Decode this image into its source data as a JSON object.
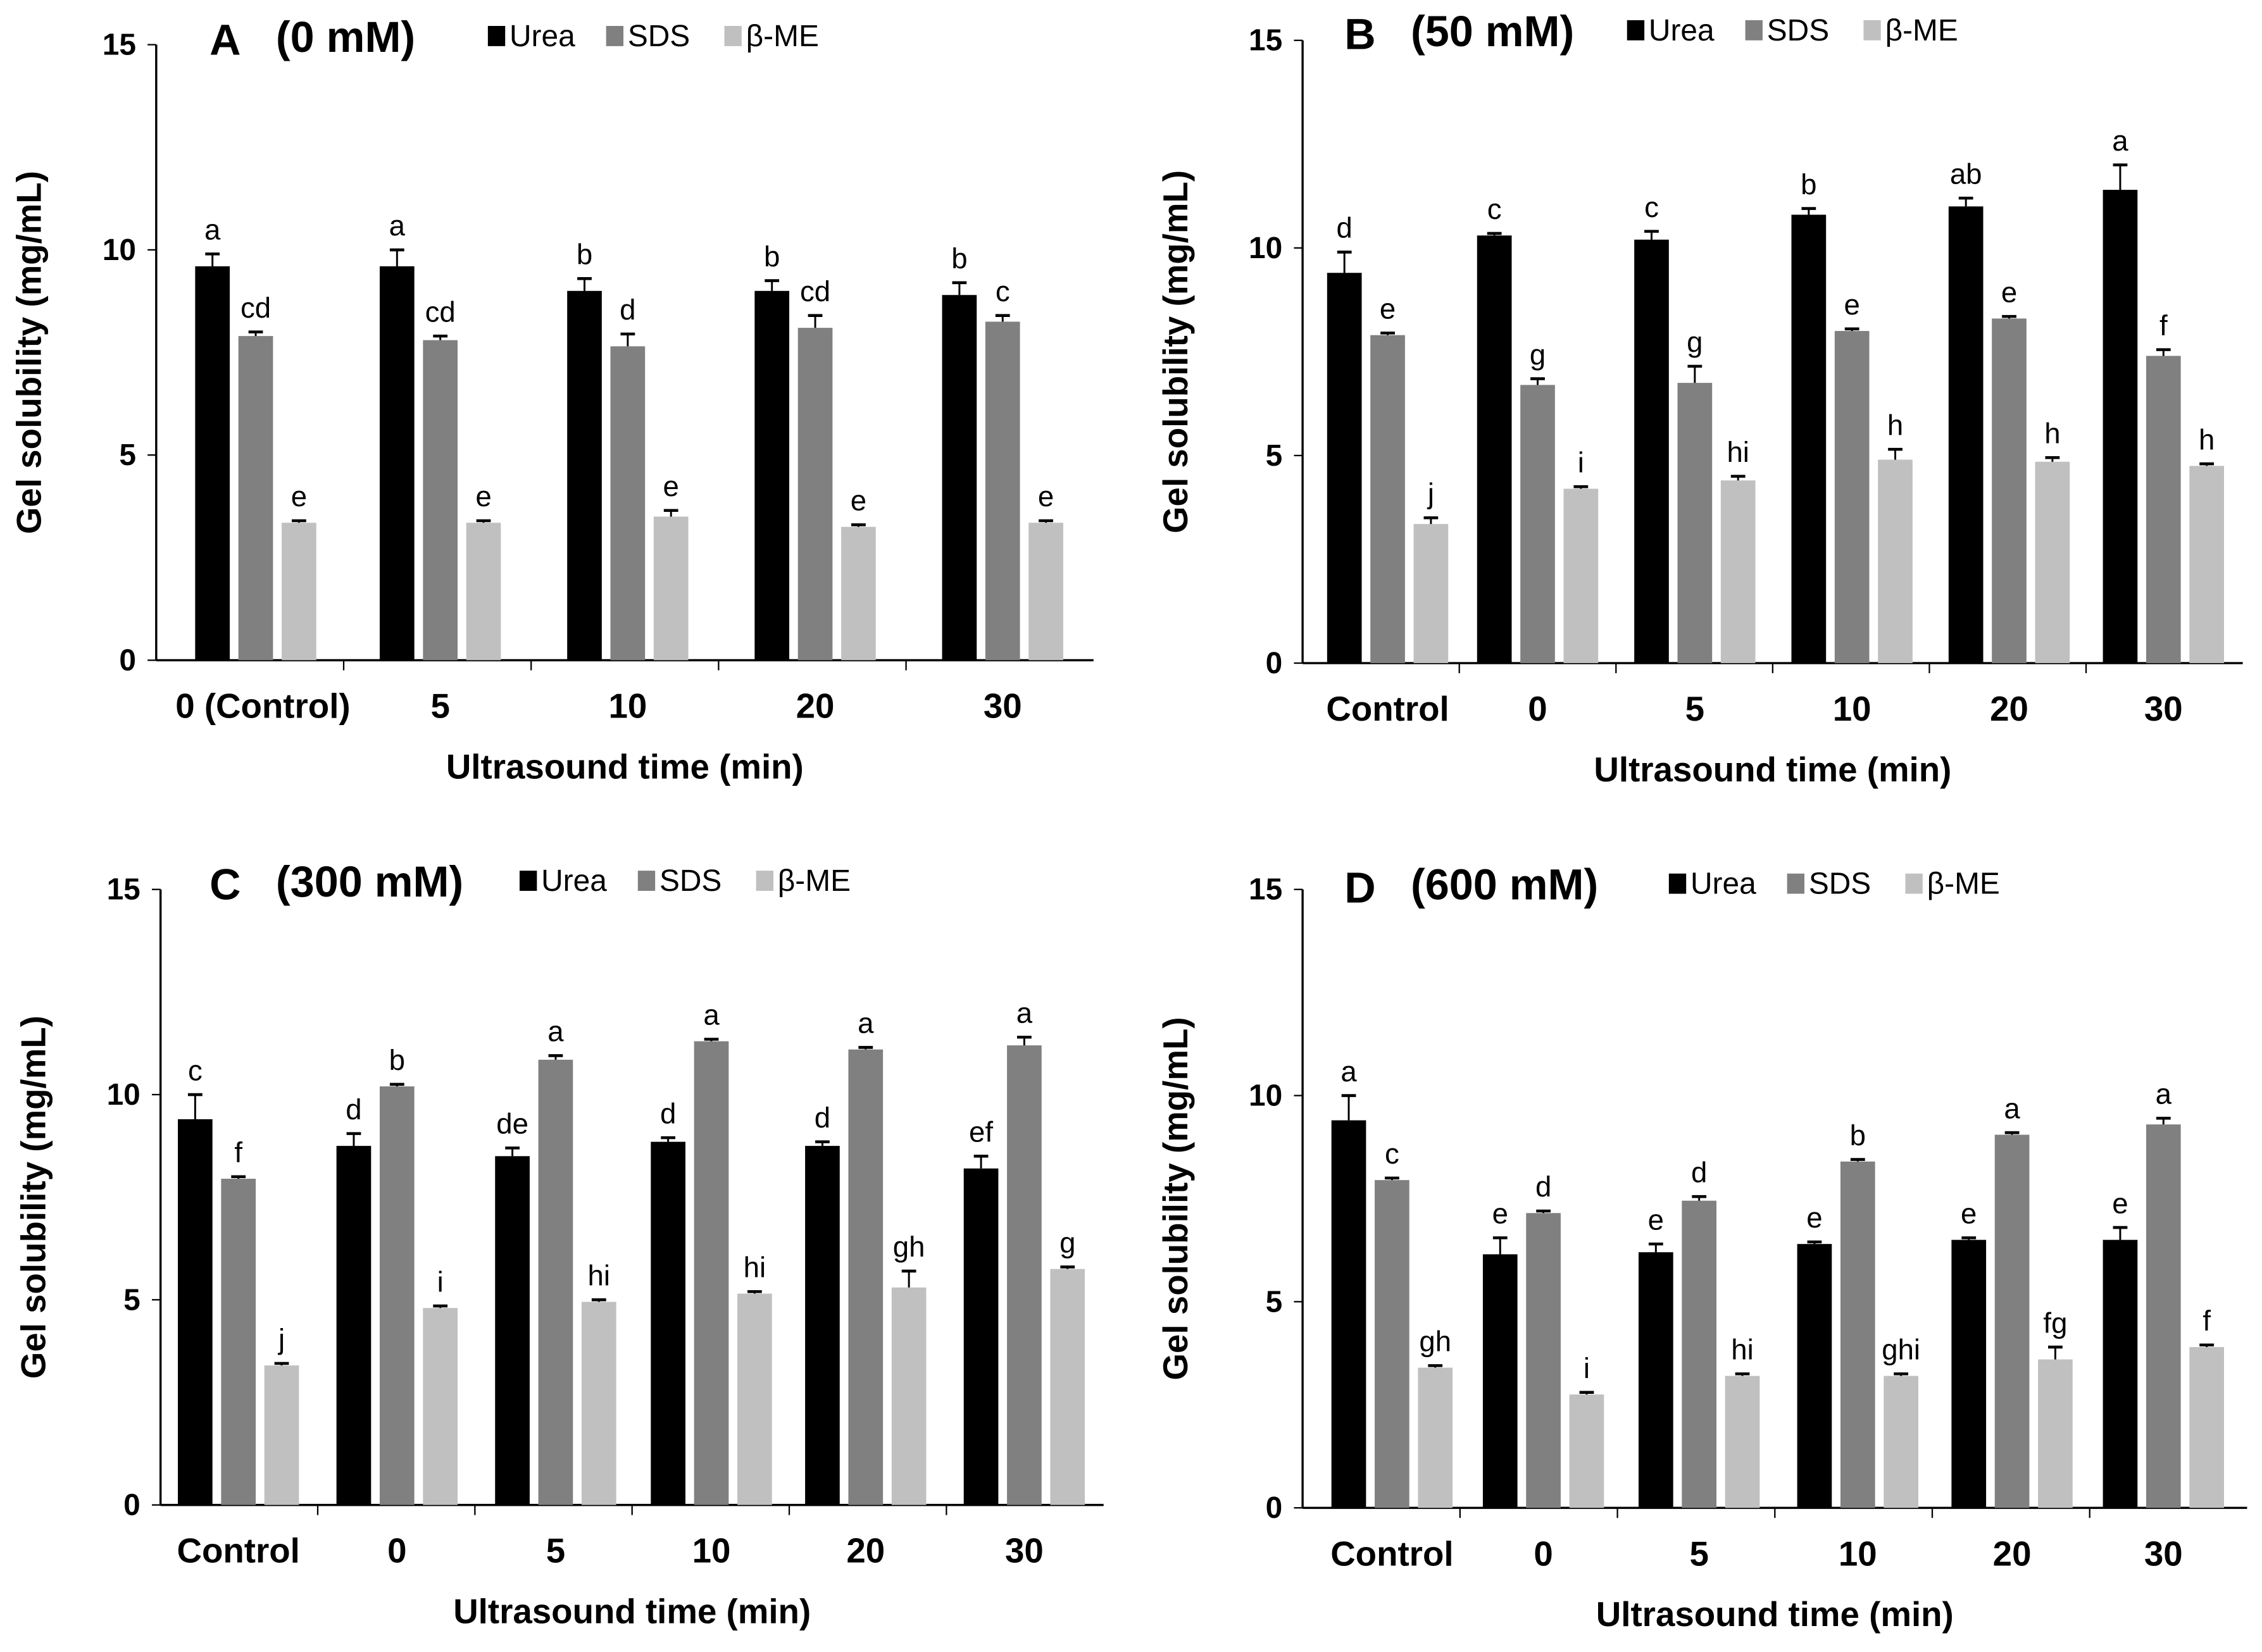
{
  "colors": {
    "Urea": "#000000",
    "SDS": "#808080",
    "β-ME": "#c0c0c0"
  },
  "chart_data": [
    {
      "type": "bar",
      "panel": "A",
      "title": "(0 mM)",
      "xlabel": "Ultrasound time (min)",
      "ylabel": "Gel solubility (mg/mL)",
      "ylim": [
        0,
        15
      ],
      "yticks": [
        0,
        5,
        10,
        15
      ],
      "legend": [
        "Urea",
        "SDS",
        "β-ME"
      ],
      "legend_position": "top",
      "categories": [
        "0 (Control)",
        "5",
        "10",
        "20",
        "30"
      ],
      "series": [
        {
          "name": "Urea",
          "values": [
            9.6,
            9.6,
            9.0,
            9.0,
            8.9
          ],
          "errors": [
            0.3,
            0.4,
            0.3,
            0.25,
            0.3
          ],
          "letters": [
            "a",
            "a",
            "b",
            "b",
            "b"
          ]
        },
        {
          "name": "SDS",
          "values": [
            7.9,
            7.8,
            7.65,
            8.1,
            8.25
          ],
          "errors": [
            0.1,
            0.1,
            0.3,
            0.3,
            0.15
          ],
          "letters": [
            "cd",
            "cd",
            "d",
            "cd",
            "c"
          ]
        },
        {
          "name": "β-ME",
          "values": [
            3.35,
            3.35,
            3.5,
            3.25,
            3.35
          ],
          "errors": [
            0.05,
            0.05,
            0.15,
            0.05,
            0.05
          ],
          "letters": [
            "e",
            "e",
            "e",
            "e",
            "e"
          ]
        }
      ]
    },
    {
      "type": "bar",
      "panel": "B",
      "title": "(50 mM)",
      "xlabel": "Ultrasound time (min)",
      "ylabel": "Gel solubility (mg/mL)",
      "ylim": [
        0,
        15
      ],
      "yticks": [
        0,
        5,
        10,
        15
      ],
      "legend": [
        "Urea",
        "SDS",
        "β-ME"
      ],
      "legend_position": "top",
      "categories": [
        "Control",
        "0",
        "5",
        "10",
        "20",
        "30"
      ],
      "series": [
        {
          "name": "Urea",
          "values": [
            9.4,
            10.3,
            10.2,
            10.8,
            11.0,
            11.4
          ],
          "errors": [
            0.5,
            0.05,
            0.2,
            0.15,
            0.2,
            0.6
          ],
          "letters": [
            "d",
            "c",
            "c",
            "b",
            "ab",
            "a"
          ]
        },
        {
          "name": "SDS",
          "values": [
            7.9,
            6.7,
            6.75,
            8.0,
            8.3,
            7.4
          ],
          "errors": [
            0.05,
            0.15,
            0.4,
            0.05,
            0.05,
            0.15
          ],
          "letters": [
            "e",
            "g",
            "g",
            "e",
            "e",
            "f"
          ]
        },
        {
          "name": "β-ME",
          "values": [
            3.35,
            4.2,
            4.4,
            4.9,
            4.85,
            4.75
          ],
          "errors": [
            0.15,
            0.05,
            0.1,
            0.25,
            0.1,
            0.05
          ],
          "letters": [
            "j",
            "i",
            "hi",
            "h",
            "h",
            "h"
          ]
        }
      ]
    },
    {
      "type": "bar",
      "panel": "C",
      "title": "(300 mM)",
      "xlabel": "Ultrasound time (min)",
      "ylabel": "Gel solubility (mg/mL)",
      "ylim": [
        0,
        15
      ],
      "yticks": [
        0,
        5,
        10,
        15
      ],
      "legend": [
        "Urea",
        "SDS",
        "β-ME"
      ],
      "legend_position": "top",
      "categories": [
        "Control",
        "0",
        "5",
        "10",
        "20",
        "30"
      ],
      "series": [
        {
          "name": "Urea",
          "values": [
            9.4,
            8.75,
            8.5,
            8.85,
            8.75,
            8.2
          ],
          "errors": [
            0.6,
            0.3,
            0.2,
            0.1,
            0.1,
            0.3
          ],
          "letters": [
            "c",
            "d",
            "de",
            "d",
            "d",
            "ef"
          ]
        },
        {
          "name": "SDS",
          "values": [
            7.95,
            10.2,
            10.85,
            11.3,
            11.1,
            11.2
          ],
          "errors": [
            0.05,
            0.05,
            0.1,
            0.05,
            0.05,
            0.2
          ],
          "letters": [
            "f",
            "b",
            "a",
            "a",
            "a",
            "a"
          ]
        },
        {
          "name": "β-ME",
          "values": [
            3.4,
            4.8,
            4.95,
            5.15,
            5.3,
            5.75
          ],
          "errors": [
            0.05,
            0.05,
            0.05,
            0.05,
            0.4,
            0.05
          ],
          "letters": [
            "j",
            "i",
            "hi",
            "hi",
            "gh",
            "g"
          ]
        }
      ]
    },
    {
      "type": "bar",
      "panel": "D",
      "title": "(600 mM)",
      "xlabel": "Ultrasound time (min)",
      "ylabel": "Gel solubility (mg/mL)",
      "ylim": [
        0,
        15
      ],
      "yticks": [
        0,
        5,
        10,
        15
      ],
      "legend": [
        "Urea",
        "SDS",
        "β-ME"
      ],
      "legend_position": "top",
      "categories": [
        "Control",
        "0",
        "5",
        "10",
        "20",
        "30"
      ],
      "series": [
        {
          "name": "Urea",
          "values": [
            9.4,
            6.15,
            6.2,
            6.4,
            6.5,
            6.5
          ],
          "errors": [
            0.6,
            0.4,
            0.2,
            0.05,
            0.05,
            0.3
          ],
          "letters": [
            "a",
            "e",
            "e",
            "e",
            "e",
            "e"
          ]
        },
        {
          "name": "SDS",
          "values": [
            7.95,
            7.15,
            7.45,
            8.4,
            9.05,
            9.3
          ],
          "errors": [
            0.05,
            0.05,
            0.1,
            0.05,
            0.05,
            0.15
          ],
          "letters": [
            "c",
            "d",
            "d",
            "b",
            "a",
            "a"
          ]
        },
        {
          "name": "β-ME",
          "values": [
            3.4,
            2.75,
            3.2,
            3.2,
            3.6,
            3.9
          ],
          "errors": [
            0.05,
            0.05,
            0.05,
            0.05,
            0.3,
            0.05
          ],
          "letters": [
            "gh",
            "i",
            "hi",
            "ghi",
            "fg",
            "f"
          ]
        }
      ]
    }
  ]
}
